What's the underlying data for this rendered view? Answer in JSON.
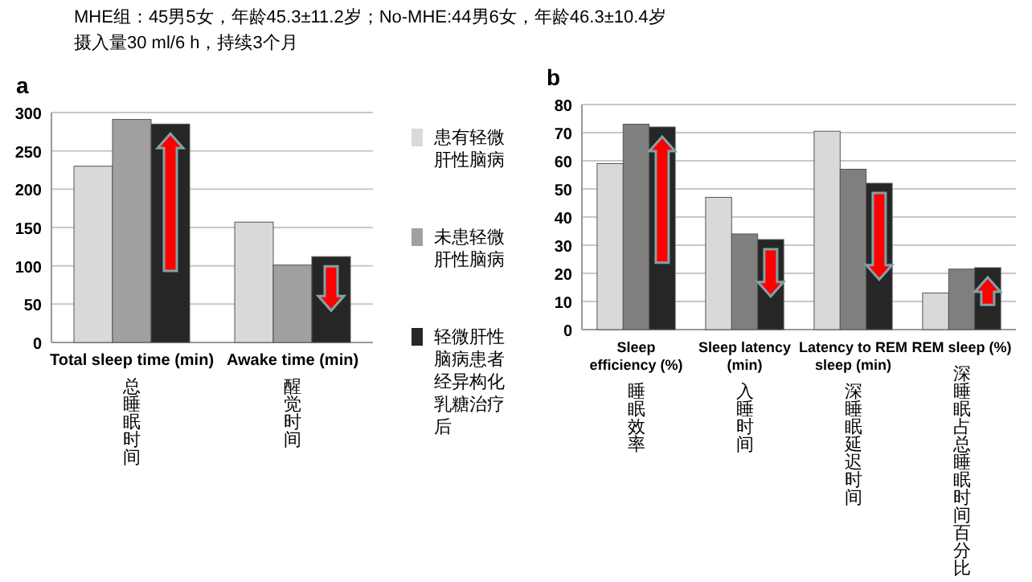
{
  "chart_data": [
    {
      "type": "bar",
      "title": "a",
      "categories": [
        "Total sleep time (min)",
        "Awake time (min)"
      ],
      "series": [
        {
          "name": "患有轻微肝性脑病",
          "color": "#d9d9d9",
          "values": [
            230,
            157
          ]
        },
        {
          "name": "未患轻微肝性脑病",
          "color": "#a0a0a0",
          "values": [
            291,
            101
          ]
        },
        {
          "name": "轻微肝性脑病患者经异构化乳糖治疗后",
          "color": "#262626",
          "values": [
            285,
            112
          ]
        }
      ],
      "ylim": [
        0,
        300
      ],
      "yticks": [
        0,
        50,
        100,
        150,
        200,
        250,
        300
      ],
      "grid": "y",
      "legend": "right",
      "annotations": [
        "MHE组：45男5女，年龄45.3±11.2岁；No-MHE:44男6女，年龄46.3±10.4岁",
        "摄入量30 ml/6 h，持续3个月",
        "总睡眠时间",
        "醒觉时间"
      ]
    },
    {
      "type": "bar",
      "title": "b",
      "categories": [
        "Sleep efficiency (%)",
        "Sleep latency (min)",
        "Latency to REM sleep (min)",
        "REM sleep (%)"
      ],
      "series": [
        {
          "color": "#d9d9d9",
          "values": [
            59,
            47,
            70.5,
            13
          ]
        },
        {
          "color": "#7f7f7f",
          "values": [
            73,
            34,
            57,
            21.5
          ]
        },
        {
          "color": "#262626",
          "values": [
            72,
            32,
            52,
            22
          ]
        }
      ],
      "ylim": [
        0,
        80
      ],
      "yticks": [
        0,
        10,
        20,
        30,
        40,
        50,
        60,
        70,
        80
      ],
      "grid": "y",
      "annotations": [
        "睡眠效率",
        "入睡时间",
        "深睡眠延迟时间",
        "深睡眠占总睡眠时间百分比"
      ]
    }
  ]
}
